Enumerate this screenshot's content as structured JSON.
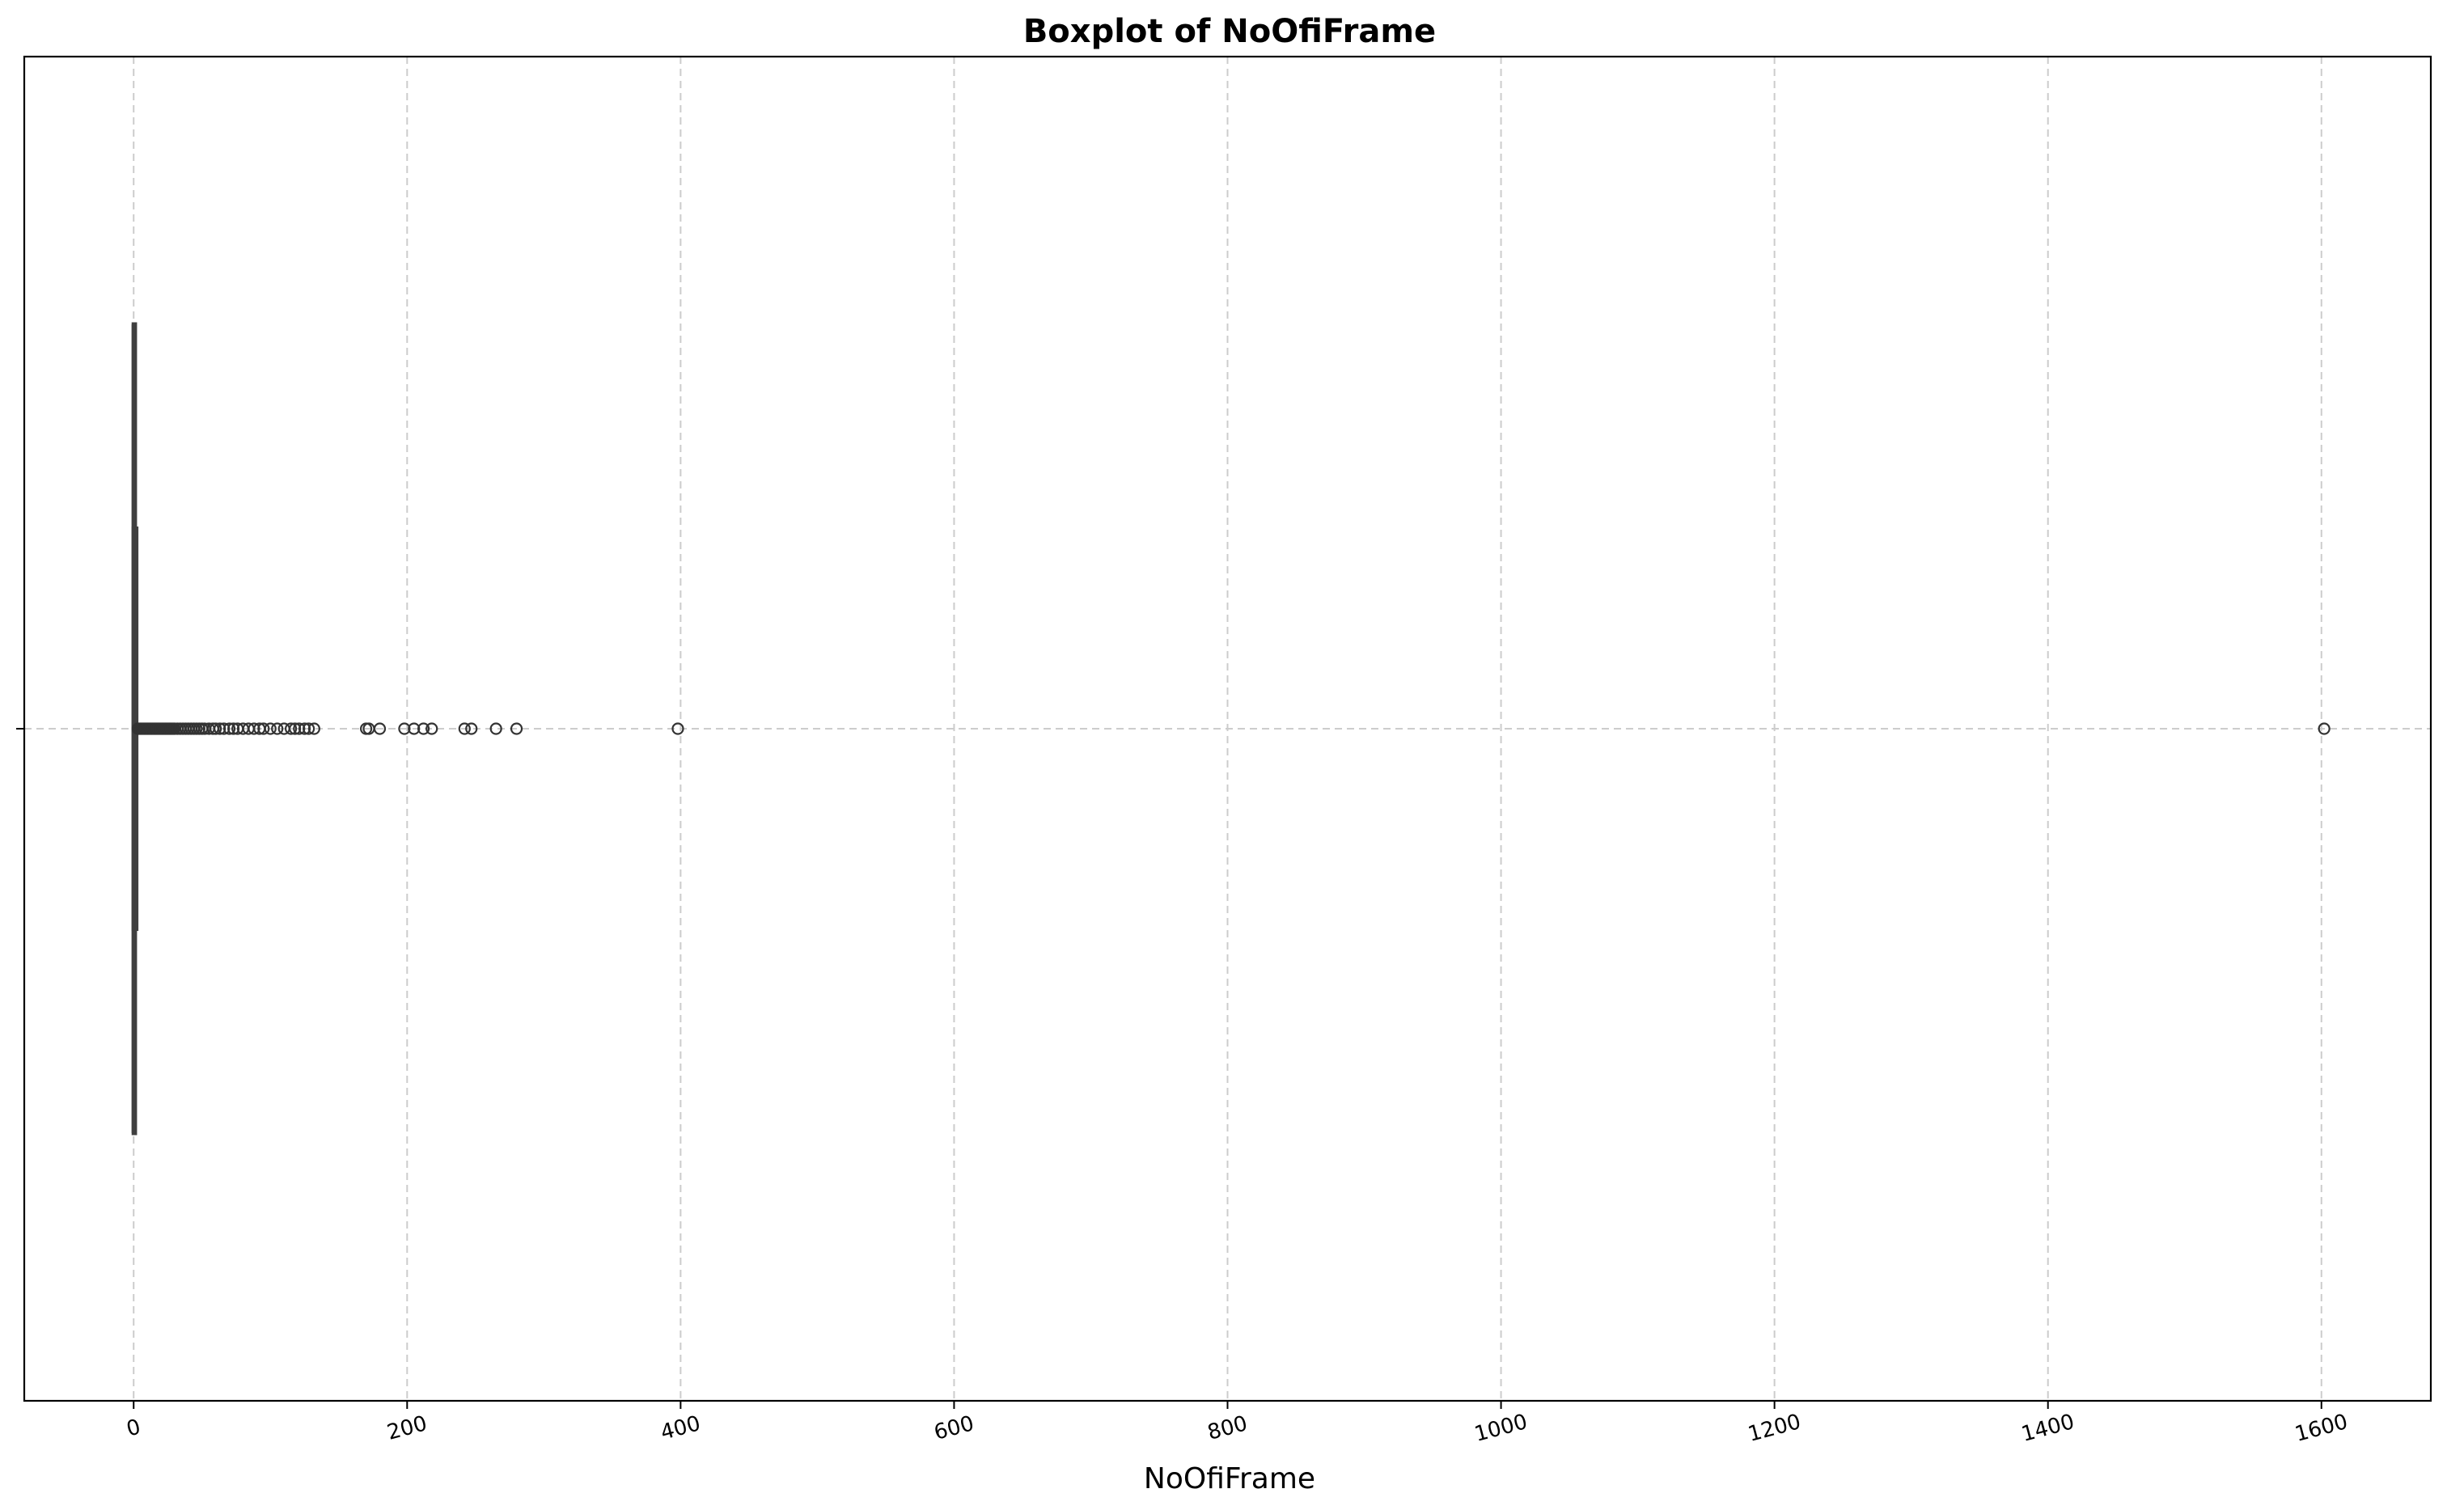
{
  "chart_data": {
    "type": "box",
    "title": "Boxplot of NoOfiFrame",
    "xlabel": "NoOfiFrame",
    "ylabel": "",
    "xlim": [
      -80,
      1680
    ],
    "xticks": [
      0,
      200,
      400,
      600,
      800,
      1000,
      1200,
      1400,
      1600
    ],
    "tick_rotation_deg": 15,
    "grid": true,
    "orientation": "horizontal",
    "box": {
      "min": 0,
      "q1": 0,
      "median": 0,
      "q3": 1,
      "whisker_low": 0,
      "whisker_high": 2
    },
    "outliers": [
      3,
      4,
      5,
      6,
      7,
      8,
      9,
      10,
      11,
      12,
      13,
      14,
      15,
      16,
      17,
      18,
      19,
      20,
      21,
      22,
      23,
      24,
      25,
      26,
      27,
      28,
      29,
      30,
      32,
      34,
      36,
      38,
      40,
      42,
      44,
      46,
      48,
      50,
      52,
      55,
      58,
      60,
      63,
      66,
      70,
      73,
      76,
      80,
      84,
      88,
      92,
      95,
      100,
      105,
      110,
      115,
      118,
      121,
      125,
      128,
      132,
      170,
      172,
      180,
      198,
      205,
      212,
      218,
      242,
      247,
      265,
      280,
      398,
      1602
    ],
    "colors": {
      "box": "#3f3f3f",
      "grid": "#cccccc",
      "axes": "#000000"
    }
  }
}
